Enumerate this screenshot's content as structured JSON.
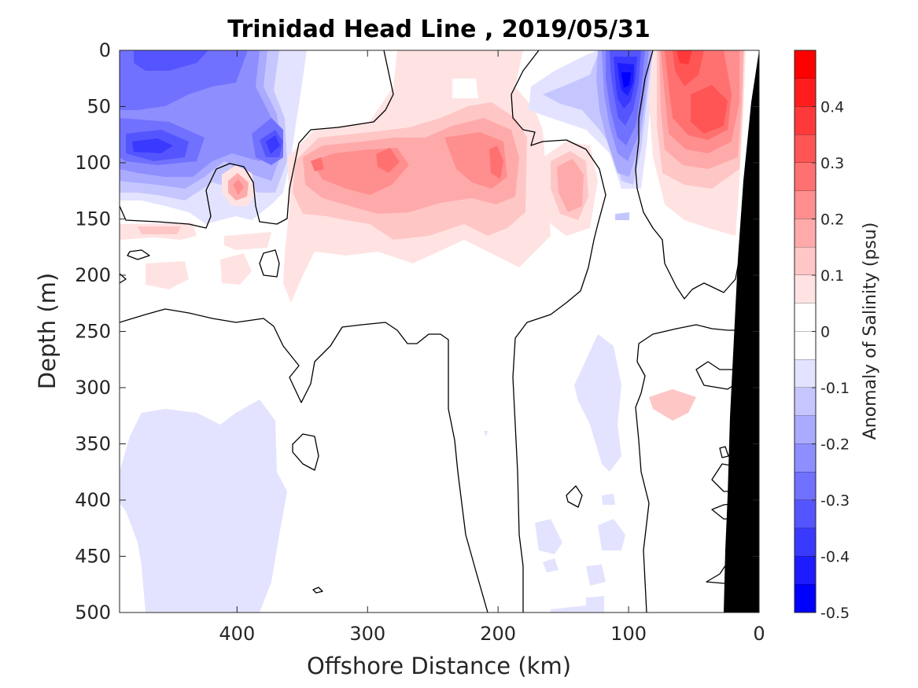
{
  "chart_data": {
    "type": "heatmap",
    "title": "Trinidad Head Line , 2019/05/31",
    "xlabel": "Offshore Distance (km)",
    "ylabel": "Depth (m)",
    "xlim": [
      490,
      0
    ],
    "ylim": [
      0,
      500
    ],
    "x_ticks": [
      400,
      300,
      200,
      100,
      0
    ],
    "y_ticks": [
      0,
      50,
      100,
      150,
      200,
      250,
      300,
      350,
      400,
      450,
      500
    ],
    "x_tick_labels": [
      "400",
      "300",
      "200",
      "100",
      "0"
    ],
    "y_tick_labels": [
      "0",
      "50",
      "100",
      "150",
      "200",
      "250",
      "300",
      "350",
      "400",
      "450",
      "500"
    ],
    "zero_contour_color": "#000000",
    "bathymetry_color": "#000000",
    "colorbar": {
      "label": "Anomaly of Salinity (psu)",
      "range": [
        -0.5,
        0.5
      ],
      "ticks": [
        0.4,
        0.3,
        0.2,
        0.1,
        0,
        -0.1,
        -0.2,
        -0.3,
        -0.4,
        -0.5
      ],
      "tick_labels": [
        "0.4",
        "0.3",
        "0.2",
        "0.1",
        "0",
        "-0.1",
        "-0.2",
        "-0.3",
        "-0.4",
        "-0.5"
      ],
      "levels": [
        {
          "from": 0.45,
          "to": 0.5,
          "color": "#ff0000"
        },
        {
          "from": 0.4,
          "to": 0.45,
          "color": "#ff1c1c"
        },
        {
          "from": 0.35,
          "to": 0.4,
          "color": "#ff3939"
        },
        {
          "from": 0.3,
          "to": 0.35,
          "color": "#ff5555"
        },
        {
          "from": 0.25,
          "to": 0.3,
          "color": "#ff7171"
        },
        {
          "from": 0.2,
          "to": 0.25,
          "color": "#ff8e8e"
        },
        {
          "from": 0.15,
          "to": 0.2,
          "color": "#ffaaaa"
        },
        {
          "from": 0.1,
          "to": 0.15,
          "color": "#ffc6c6"
        },
        {
          "from": 0.05,
          "to": 0.1,
          "color": "#ffe3e3"
        },
        {
          "from": 0.0,
          "to": 0.05,
          "color": "#ffffff"
        },
        {
          "from": -0.05,
          "to": 0.0,
          "color": "#ffffff"
        },
        {
          "from": -0.1,
          "to": -0.05,
          "color": "#e3e3ff"
        },
        {
          "from": -0.15,
          "to": -0.1,
          "color": "#c6c6ff"
        },
        {
          "from": -0.2,
          "to": -0.15,
          "color": "#aaaaff"
        },
        {
          "from": -0.25,
          "to": -0.2,
          "color": "#8e8eff"
        },
        {
          "from": -0.3,
          "to": -0.25,
          "color": "#7171ff"
        },
        {
          "from": -0.35,
          "to": -0.3,
          "color": "#5555ff"
        },
        {
          "from": -0.4,
          "to": -0.35,
          "color": "#3939ff"
        },
        {
          "from": -0.45,
          "to": -0.4,
          "color": "#1c1cff"
        },
        {
          "from": -0.5,
          "to": -0.45,
          "color": "#0000ff"
        }
      ]
    },
    "anomaly_features": [
      {
        "x": 440,
        "depth": 40,
        "value": -0.25
      },
      {
        "x": 465,
        "depth": 80,
        "value": -0.35
      },
      {
        "x": 370,
        "depth": 85,
        "value": -0.35
      },
      {
        "x": 400,
        "depth": 122,
        "value": 0.2
      },
      {
        "x": 290,
        "depth": 105,
        "value": 0.25
      },
      {
        "x": 215,
        "depth": 110,
        "value": 0.25
      },
      {
        "x": 145,
        "depth": 120,
        "value": 0.2
      },
      {
        "x": 100,
        "depth": 30,
        "value": -0.45
      },
      {
        "x": 60,
        "depth": 5,
        "value": 0.35
      },
      {
        "x": 40,
        "depth": 60,
        "value": 0.3
      },
      {
        "x": 430,
        "depth": 420,
        "value": -0.1
      },
      {
        "x": 120,
        "depth": 340,
        "value": -0.1
      },
      {
        "x": 55,
        "depth": 320,
        "value": 0.1
      }
    ]
  }
}
